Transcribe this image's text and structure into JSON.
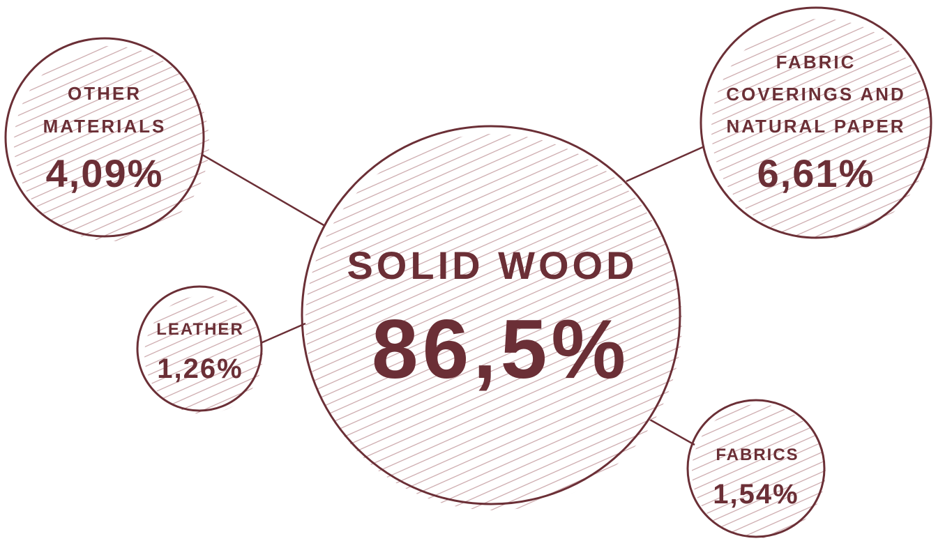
{
  "colors": {
    "accent": "#6b2f36",
    "hatch": "#c9a4a8"
  },
  "nodes": {
    "solid_wood": {
      "label": "SOLID WOOD",
      "value": "86,5%"
    },
    "other_materials": {
      "label_line1": "OTHER",
      "label_line2": "MATERIALS",
      "value": "4,09%"
    },
    "fabric_coverings": {
      "label_line1": "FABRIC",
      "label_line2": "COVERINGS AND",
      "label_line3": "NATURAL PAPER",
      "value": "6,61%"
    },
    "leather": {
      "label": "LEATHER",
      "value": "1,26%"
    },
    "fabrics": {
      "label": "FABRICS",
      "value": "1,54%"
    }
  }
}
